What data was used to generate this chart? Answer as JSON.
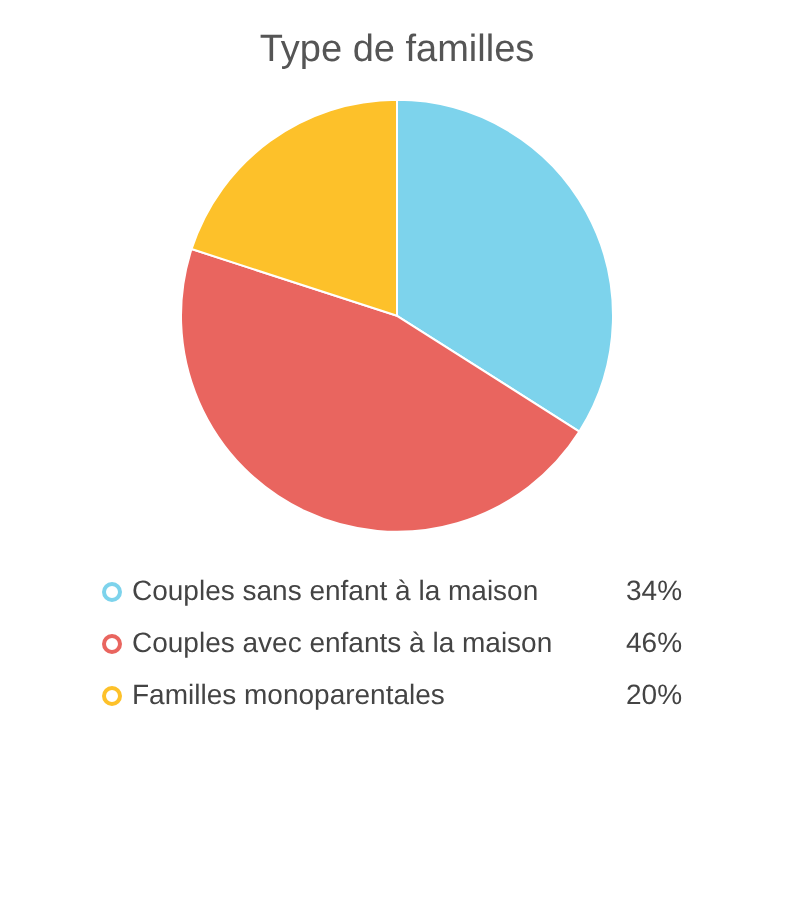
{
  "chart_data": {
    "type": "pie",
    "title": "Type de familles",
    "categories": [
      "Couples sans enfant à la maison",
      "Couples avec enfants à la maison",
      "Familles monoparentales"
    ],
    "values": [
      34,
      46,
      20
    ],
    "colors": [
      "#7dd3ec",
      "#e9655f",
      "#fdc12a"
    ],
    "value_labels": [
      "34%",
      "46%",
      "20%"
    ],
    "legend": "bottom"
  }
}
